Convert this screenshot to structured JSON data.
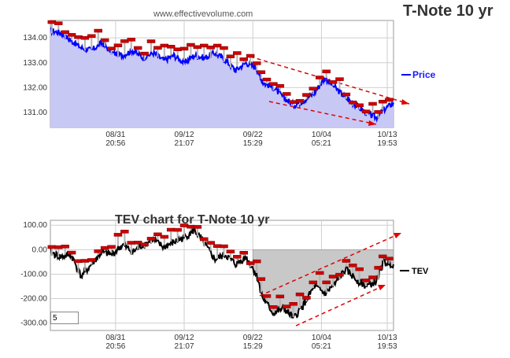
{
  "page": {
    "site": "www.effectivevolume.com",
    "title": "T-Note 10 yr",
    "period_value": "5"
  },
  "chart_data": [
    {
      "type": "line",
      "name": "price-chart",
      "series": [
        {
          "name": "Price",
          "color": "#0000ff",
          "fill": "#c8c8f5"
        }
      ],
      "y_ticks": [
        "134.00",
        "133.00",
        "132.00",
        "131.00"
      ],
      "y_tick_values": [
        134,
        133,
        132,
        131
      ],
      "ylim": [
        130.4,
        134.7
      ],
      "x_ticks": [
        {
          "date": "08/31",
          "time": "20:56"
        },
        {
          "date": "09/12",
          "time": "21:07"
        },
        {
          "date": "09/22",
          "time": "15:29"
        },
        {
          "date": "10/04",
          "time": "05:21"
        },
        {
          "date": "10/13",
          "time": "19:53"
        }
      ],
      "x_tick_index": [
        0.19,
        0.39,
        0.59,
        0.79,
        1.0
      ],
      "path": [
        [
          0.0,
          134.3
        ],
        [
          0.03,
          134.2
        ],
        [
          0.06,
          133.9
        ],
        [
          0.09,
          133.6
        ],
        [
          0.12,
          133.5
        ],
        [
          0.15,
          133.8
        ],
        [
          0.18,
          133.4
        ],
        [
          0.21,
          133.3
        ],
        [
          0.24,
          133.5
        ],
        [
          0.27,
          133.2
        ],
        [
          0.3,
          133.4
        ],
        [
          0.33,
          133.1
        ],
        [
          0.36,
          133.3
        ],
        [
          0.39,
          133.0
        ],
        [
          0.42,
          133.3
        ],
        [
          0.45,
          133.2
        ],
        [
          0.48,
          133.4
        ],
        [
          0.51,
          133.1
        ],
        [
          0.54,
          132.7
        ],
        [
          0.57,
          133.0
        ],
        [
          0.6,
          132.8
        ],
        [
          0.62,
          132.2
        ],
        [
          0.65,
          132.0
        ],
        [
          0.68,
          131.6
        ],
        [
          0.71,
          131.3
        ],
        [
          0.74,
          131.5
        ],
        [
          0.77,
          131.8
        ],
        [
          0.8,
          132.4
        ],
        [
          0.83,
          132.0
        ],
        [
          0.86,
          131.6
        ],
        [
          0.89,
          131.3
        ],
        [
          0.92,
          131.0
        ],
        [
          0.95,
          130.8
        ],
        [
          0.97,
          131.1
        ],
        [
          1.0,
          131.4
        ]
      ],
      "legend": "Price",
      "legend_position": "right"
    },
    {
      "type": "line",
      "name": "tev-chart",
      "title": "TEV chart for T-Note 10 yr",
      "series": [
        {
          "name": "TEV",
          "color": "#000000"
        }
      ],
      "y_ticks": [
        "100.00",
        "0.00",
        "-100.00",
        "-200.00",
        "-300.00"
      ],
      "y_tick_values": [
        100,
        0,
        -100,
        -200,
        -300
      ],
      "ylim": [
        -330,
        120
      ],
      "x_ticks": [
        {
          "date": "08/31",
          "time": "20:56"
        },
        {
          "date": "09/12",
          "time": "21:07"
        },
        {
          "date": "09/22",
          "time": "15:29"
        },
        {
          "date": "10/04",
          "time": "05:21"
        },
        {
          "date": "10/13",
          "time": "19:53"
        }
      ],
      "x_tick_index": [
        0.19,
        0.39,
        0.59,
        0.79,
        1.0
      ],
      "path": [
        [
          0.0,
          -10
        ],
        [
          0.03,
          -30
        ],
        [
          0.06,
          -20
        ],
        [
          0.09,
          -110
        ],
        [
          0.12,
          -60
        ],
        [
          0.15,
          -10
        ],
        [
          0.18,
          -20
        ],
        [
          0.21,
          20
        ],
        [
          0.24,
          -10
        ],
        [
          0.27,
          20
        ],
        [
          0.3,
          40
        ],
        [
          0.33,
          10
        ],
        [
          0.36,
          30
        ],
        [
          0.39,
          50
        ],
        [
          0.42,
          80
        ],
        [
          0.45,
          20
        ],
        [
          0.48,
          -40
        ],
        [
          0.51,
          -20
        ],
        [
          0.54,
          -60
        ],
        [
          0.57,
          -30
        ],
        [
          0.6,
          -100
        ],
        [
          0.62,
          -200
        ],
        [
          0.65,
          -260
        ],
        [
          0.68,
          -240
        ],
        [
          0.71,
          -280
        ],
        [
          0.74,
          -220
        ],
        [
          0.77,
          -150
        ],
        [
          0.8,
          -180
        ],
        [
          0.83,
          -140
        ],
        [
          0.86,
          -80
        ],
        [
          0.89,
          -120
        ],
        [
          0.92,
          -150
        ],
        [
          0.95,
          -130
        ],
        [
          0.97,
          -50
        ],
        [
          1.0,
          -60
        ]
      ],
      "legend": "TEV",
      "legend_position": "right"
    }
  ]
}
